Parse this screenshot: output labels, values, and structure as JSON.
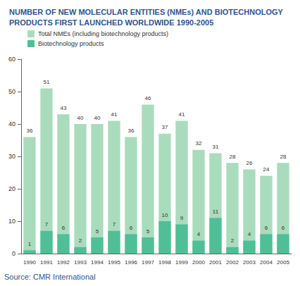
{
  "chart_data": {
    "type": "bar",
    "title": "NUMBER OF NEW MOLECULAR ENTITIES (NMEs) AND BIOTECHNOLOGY PRODUCTS FIRST LAUNCHED WORLDWIDE 1990-2005",
    "annotation": "Source: CMR International",
    "categories": [
      "1990",
      "1991",
      "1992",
      "1993",
      "1994",
      "1995",
      "1996",
      "1997",
      "1998",
      "1999",
      "2000",
      "2001",
      "2002",
      "2003",
      "2004",
      "2005"
    ],
    "series": [
      {
        "name": "Total NMEs (including biotechnology products)",
        "color": "#a9dcbc",
        "values": [
          36,
          51,
          43,
          40,
          40,
          41,
          36,
          46,
          37,
          41,
          32,
          31,
          28,
          26,
          24,
          28
        ]
      },
      {
        "name": "Biotechnology products",
        "color": "#4fbf98",
        "values": [
          1,
          7,
          6,
          2,
          5,
          7,
          6,
          5,
          10,
          9,
          4,
          11,
          2,
          4,
          6,
          6
        ]
      }
    ],
    "ylim": [
      0,
      60
    ],
    "yticks": [
      0,
      10,
      20,
      30,
      40,
      50,
      60
    ],
    "grid": false,
    "legend": "top-left",
    "data_labels": true
  }
}
